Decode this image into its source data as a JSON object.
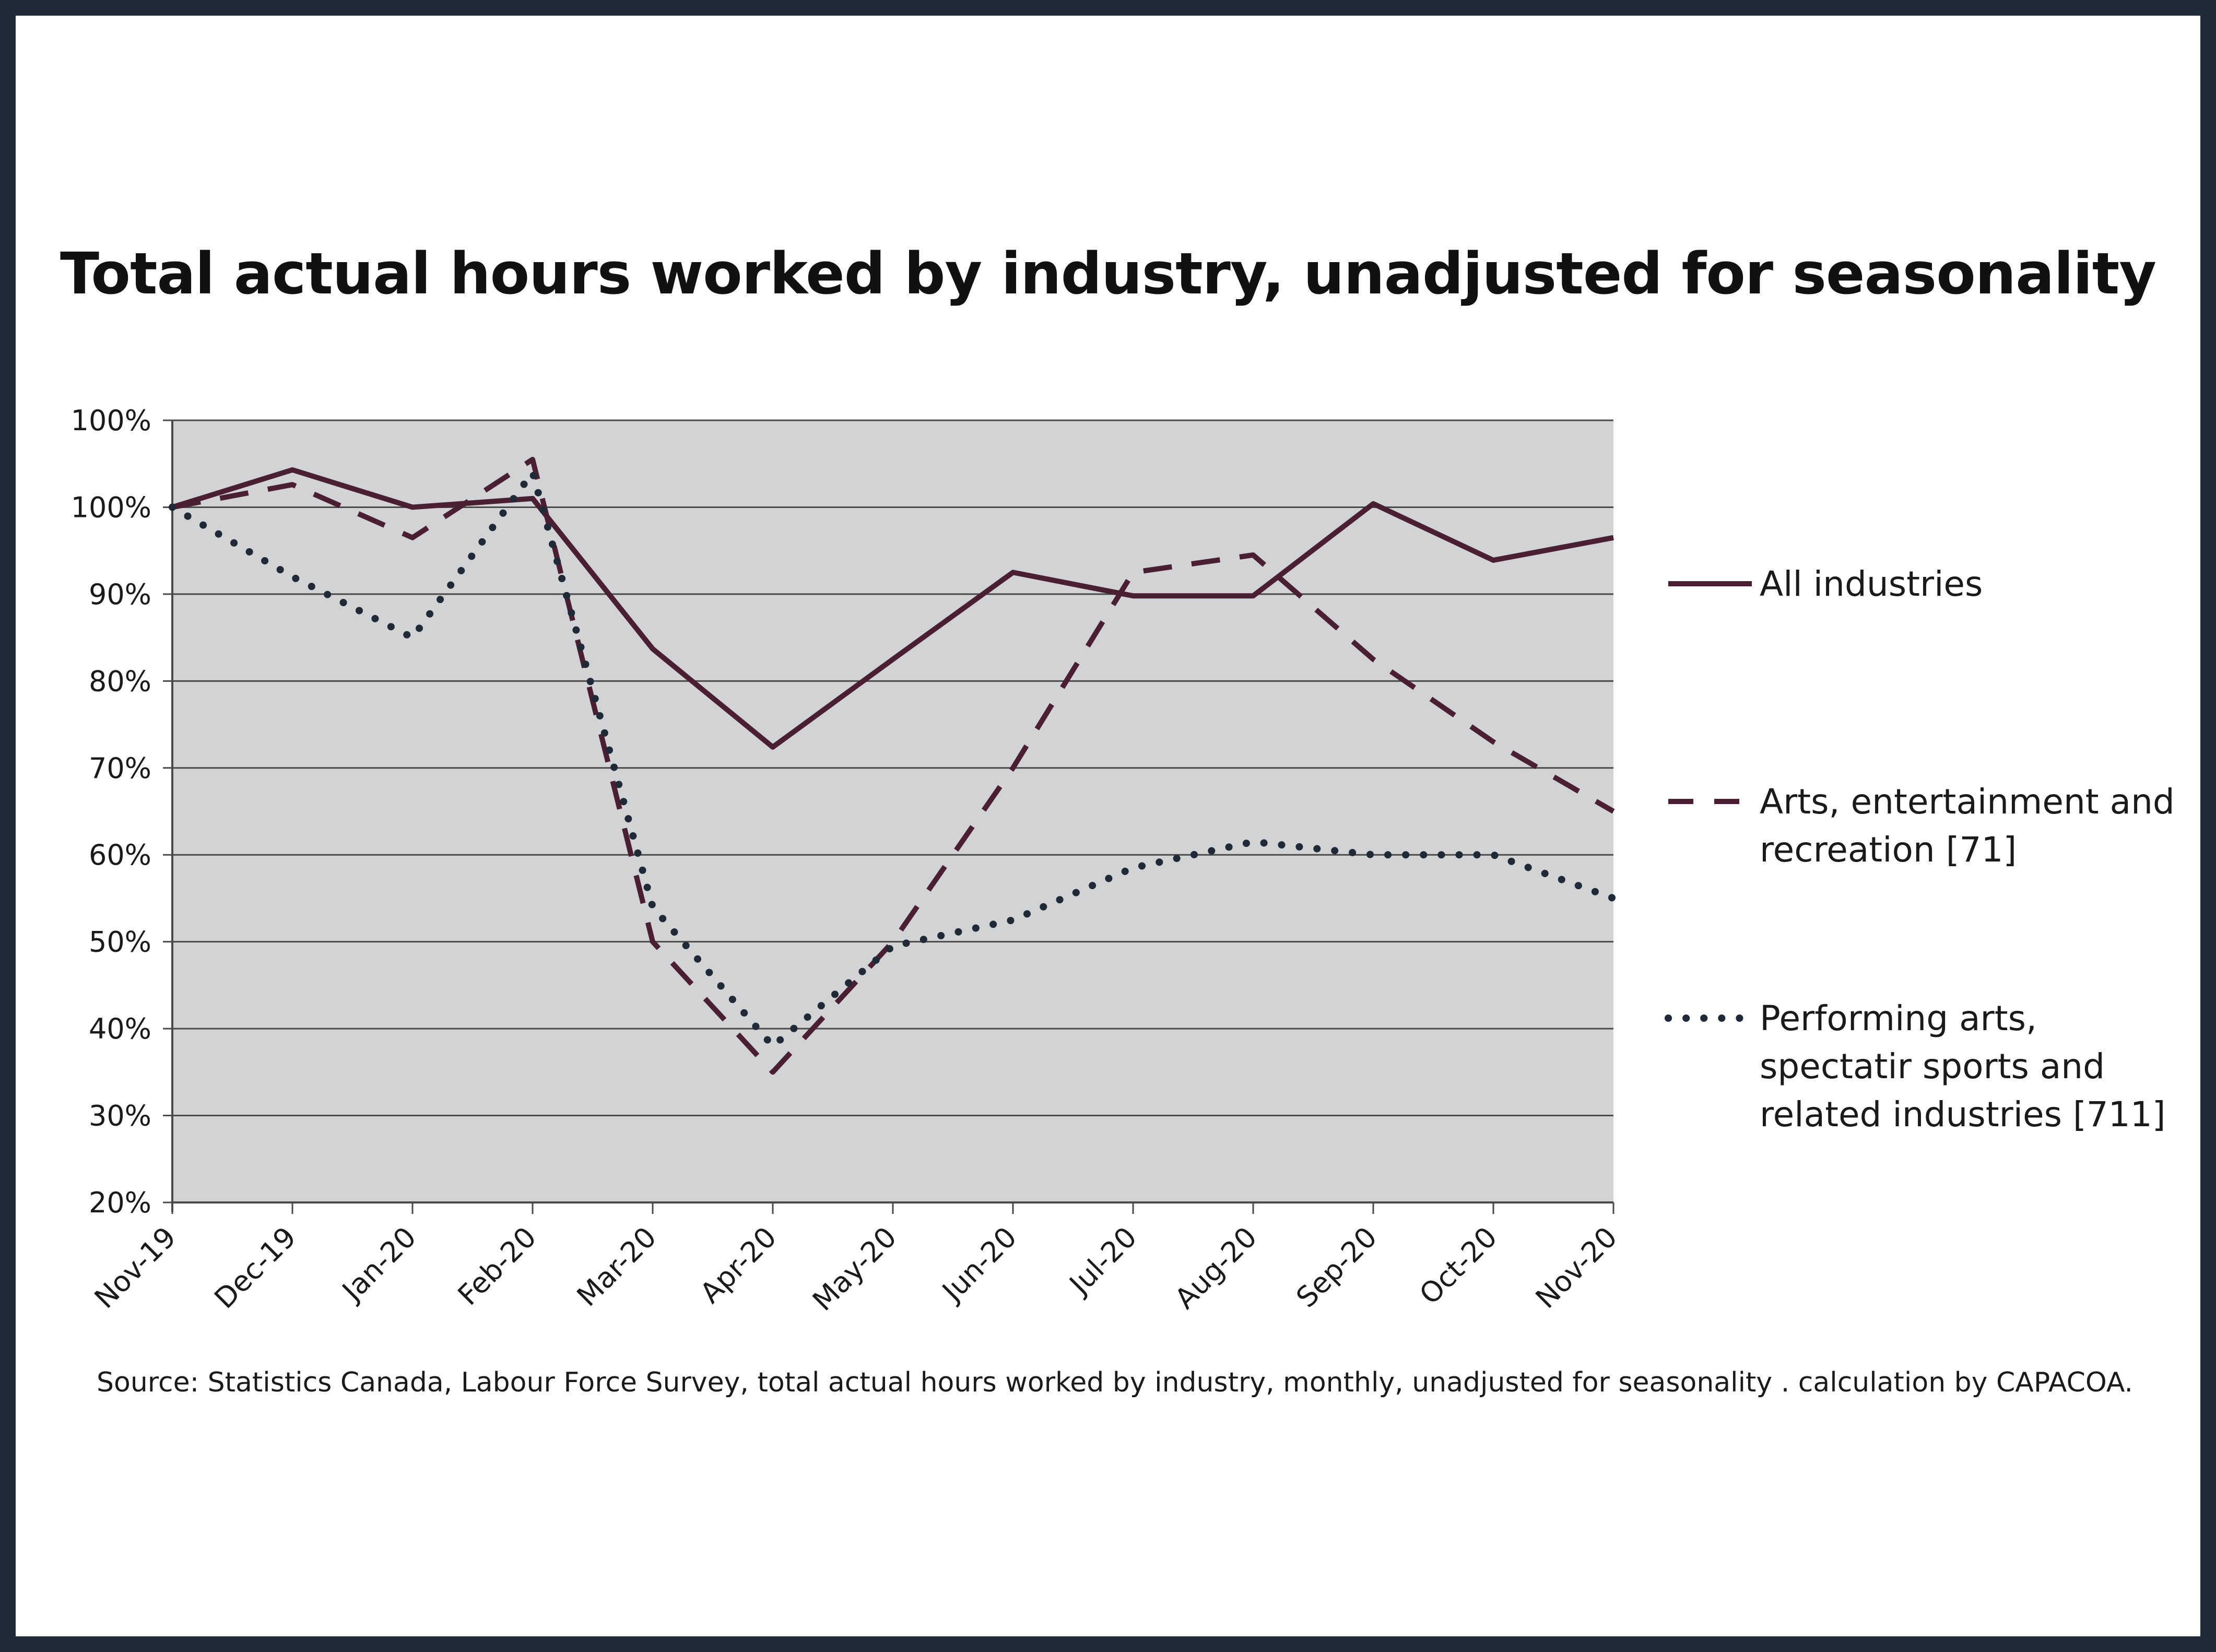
{
  "colors": {
    "frame": "#1f2a36",
    "plot_bg": "#d1d3d4",
    "grid": "#4a4a4a",
    "all_industries": "#4a1f33",
    "arts_entertainment": "#4a1f33",
    "performing_arts": "#1f2a36"
  },
  "chart_data": {
    "type": "line",
    "title": "Total actual hours worked by industry, unadjusted for seasonality",
    "xlabel": "",
    "ylabel": "",
    "categories": [
      "Nov-19",
      "Dec-19",
      "Jan-20",
      "Feb-20",
      "Mar-20",
      "Apr-20",
      "May-20",
      "Jun-20",
      "Jul-20",
      "Aug-20",
      "Sep-20",
      "Oct-20",
      "Nov-20"
    ],
    "y_tick_labels": [
      "100%",
      "100%",
      "90%",
      "80%",
      "70%",
      "60%",
      "50%",
      "40%",
      "30%",
      "20%"
    ],
    "ylim": [
      20,
      110
    ],
    "grid": true,
    "legend_position": "right",
    "series": [
      {
        "name": "All industries",
        "style": "solid",
        "values": [
          100,
          104.3,
          100,
          101,
          83.7,
          72.4,
          82.5,
          92.5,
          89.8,
          89.8,
          100.4,
          93.9,
          96.5
        ]
      },
      {
        "name": "Arts, entertainment and recreation [71]",
        "style": "dashed",
        "values": [
          100,
          102.6,
          96.5,
          105.5,
          50,
          35,
          50,
          70,
          92.5,
          94.5,
          82.5,
          73,
          65
        ]
      },
      {
        "name": "Performing arts, spectatir sports and related industries [711]",
        "style": "dotted",
        "values": [
          100,
          92,
          85,
          104,
          54,
          38,
          49.5,
          52.5,
          58.5,
          61.5,
          60,
          60,
          55
        ]
      }
    ],
    "legend": {
      "all_industries": [
        "All industries"
      ],
      "arts_entertainment": [
        "Arts, entertainment and",
        "recreation [71]"
      ],
      "performing_arts": [
        "Performing arts,",
        "spectatir sports and",
        "related industries [711]"
      ]
    }
  },
  "source": "Source: Statistics Canada, Labour Force Survey, total actual hours worked by industry, monthly, unadjusted for seasonality . calculation by CAPACOA."
}
